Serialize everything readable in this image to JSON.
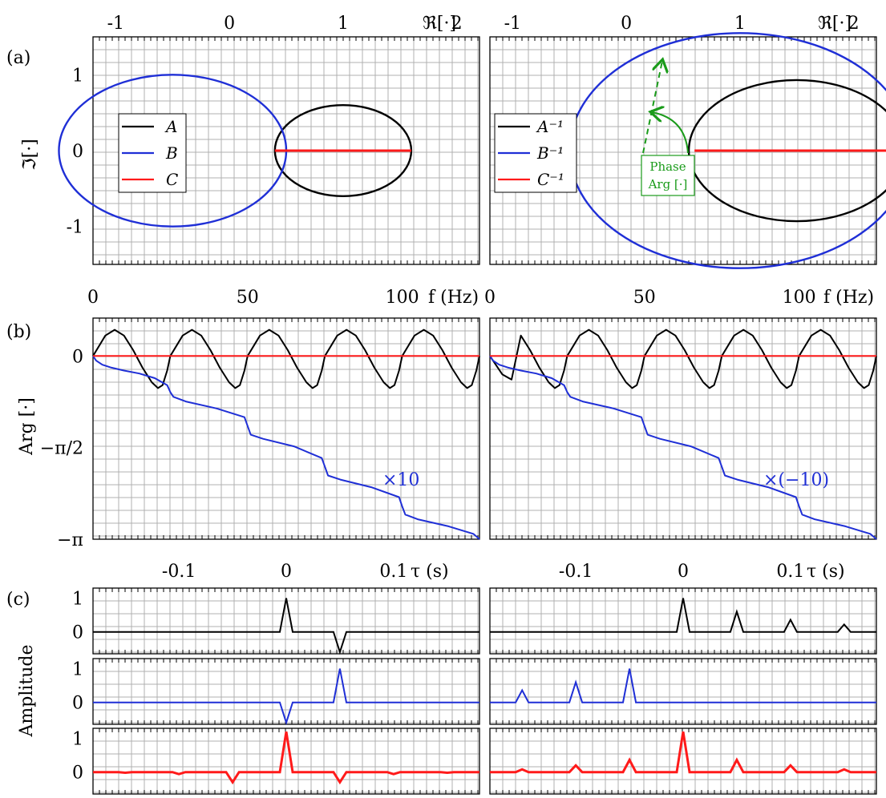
{
  "panel_labels": [
    "(a)",
    "(b)",
    "(c)"
  ],
  "colors": {
    "A": "#000000",
    "B": "#1f2fd6",
    "C": "#ff1a1a",
    "phase": "#1a9b1a",
    "grid": "#b0b0b0"
  },
  "chart_data": [
    {
      "type": "line",
      "panel": "(a) left",
      "xlabel": "ℜ[·]",
      "ylabel": "ℑ[·]",
      "xticks": [
        "-1",
        "0",
        "1",
        "2"
      ],
      "yticks": [
        "1",
        "0",
        "-1"
      ],
      "xlim": [
        -1.2,
        2.2
      ],
      "ylim": [
        -1.5,
        1.5
      ],
      "legend": {
        "position": "left",
        "entries": [
          "A",
          "B",
          "C"
        ]
      },
      "series": [
        {
          "name": "A",
          "kind": "circle",
          "center": [
            1.0,
            0.0
          ],
          "rx": 0.6,
          "ry": 0.6
        },
        {
          "name": "B",
          "kind": "circle",
          "center": [
            -0.5,
            0.0
          ],
          "rx": 1.0,
          "ry": 1.0
        },
        {
          "name": "C",
          "kind": "segment",
          "x": [
            0.4,
            1.6
          ],
          "y": [
            0,
            0
          ]
        }
      ]
    },
    {
      "type": "line",
      "panel": "(a) right",
      "xlabel": "ℜ[·]",
      "xticks": [
        "-1",
        "0",
        "1",
        "2"
      ],
      "xlim": [
        -1.2,
        2.2
      ],
      "ylim": [
        -1.5,
        1.5
      ],
      "legend": {
        "position": "left",
        "entries": [
          "A⁻¹",
          "B⁻¹",
          "C⁻¹"
        ]
      },
      "annotation": {
        "line1": "Phase",
        "line2": "Arg [·]"
      },
      "series": [
        {
          "name": "A⁻¹",
          "kind": "ellipse",
          "center": [
            1.5,
            0.0
          ],
          "rx": 0.95,
          "ry": 0.93
        },
        {
          "name": "B⁻¹",
          "kind": "ellipse",
          "center": [
            1.0,
            0.0
          ],
          "rx": 1.5,
          "ry": 1.55
        },
        {
          "name": "C⁻¹",
          "kind": "segment",
          "x": [
            0.6,
            2.45
          ],
          "y": [
            0,
            0
          ]
        }
      ]
    },
    {
      "type": "line",
      "panel": "(b)",
      "xlabel": "f (Hz)",
      "ylabel": "Arg [·]",
      "xticks": [
        "0",
        "50",
        "100"
      ],
      "yticks": [
        "0",
        "−π/2",
        "−π"
      ],
      "xlim": [
        0,
        125
      ],
      "ylim": [
        -3.1416,
        0.65
      ],
      "annotations": {
        "left": "×10",
        "right": "×(−10)"
      },
      "period_hz": 25,
      "series": [
        {
          "name": "A",
          "kind": "periodic",
          "x": [
            0,
            4,
            7,
            10,
            13,
            16,
            19,
            21,
            22.5,
            24,
            25
          ],
          "y": [
            0,
            0.35,
            0.45,
            0.35,
            0.1,
            -0.2,
            -0.45,
            -0.55,
            -0.5,
            -0.25,
            0
          ]
        },
        {
          "name": "B",
          "kind": "staircase",
          "x": [
            0,
            1,
            3,
            6,
            10,
            15,
            20,
            24,
            25,
            26,
            30,
            40,
            49,
            50,
            51,
            55,
            65,
            74,
            75,
            76,
            80,
            90,
            99,
            100,
            101,
            105,
            115,
            123,
            125
          ],
          "y": [
            0,
            -0.08,
            -0.15,
            -0.2,
            -0.25,
            -0.3,
            -0.38,
            -0.5,
            -0.62,
            -0.7,
            -0.78,
            -0.9,
            -1.05,
            -1.2,
            -1.35,
            -1.42,
            -1.55,
            -1.75,
            -1.9,
            -2.05,
            -2.12,
            -2.25,
            -2.42,
            -2.58,
            -2.72,
            -2.8,
            -2.92,
            -3.05,
            -3.14
          ]
        },
        {
          "name": "C",
          "kind": "flat",
          "x": [
            0,
            125
          ],
          "y": [
            0,
            0
          ]
        }
      ]
    },
    {
      "type": "line",
      "panel": "(c)",
      "xlabel": "τ (s)",
      "ylabel": "Amplitude",
      "xticks": [
        "-0.1",
        "0",
        "0.1"
      ],
      "yticks": [
        "1",
        "0"
      ],
      "xlim": [
        -0.18,
        0.18
      ],
      "ylim": [
        -0.65,
        1.3
      ],
      "rows": [
        {
          "name": "A",
          "left": [
            [
              0,
              1
            ],
            [
              0.05,
              -0.6
            ]
          ],
          "right": [
            [
              0,
              1
            ],
            [
              0.05,
              0.6
            ],
            [
              0.1,
              0.36
            ],
            [
              0.15,
              0.22
            ]
          ]
        },
        {
          "name": "B",
          "left": [
            [
              0,
              -0.6
            ],
            [
              0.05,
              1
            ]
          ],
          "right": [
            [
              -0.15,
              0.36
            ],
            [
              -0.1,
              0.6
            ],
            [
              -0.05,
              1
            ]
          ]
        },
        {
          "name": "C",
          "left": [
            [
              -0.15,
              -0.02
            ],
            [
              -0.1,
              -0.06
            ],
            [
              -0.05,
              -0.3
            ],
            [
              0,
              1.2
            ],
            [
              0.05,
              -0.3
            ],
            [
              0.1,
              -0.06
            ],
            [
              0.15,
              -0.02
            ]
          ],
          "right": [
            [
              -0.15,
              0.08
            ],
            [
              -0.1,
              0.2
            ],
            [
              -0.05,
              0.36
            ],
            [
              0,
              1.2
            ],
            [
              0.05,
              0.36
            ],
            [
              0.1,
              0.2
            ],
            [
              0.15,
              0.08
            ]
          ]
        }
      ]
    }
  ]
}
